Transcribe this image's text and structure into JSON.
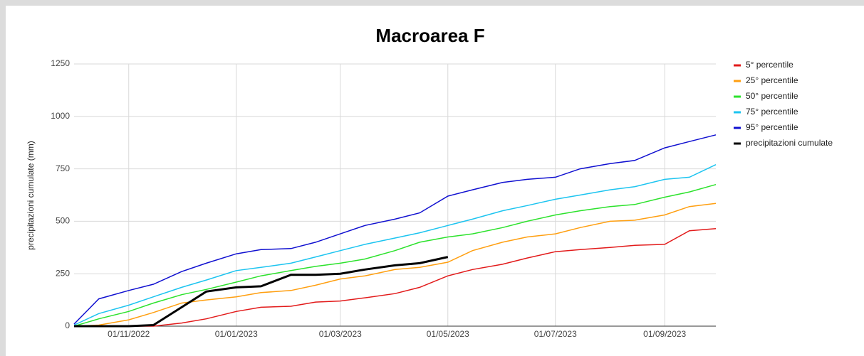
{
  "chart_data": {
    "type": "line",
    "title": "Macroarea F",
    "y_label": "precipitazioni cumulate (mm)",
    "x": [
      "01/10/2022",
      "15/10/2022",
      "01/11/2022",
      "15/11/2022",
      "01/12/2022",
      "15/12/2022",
      "01/01/2023",
      "15/01/2023",
      "01/02/2023",
      "15/02/2023",
      "01/03/2023",
      "15/03/2023",
      "01/04/2023",
      "15/04/2023",
      "01/05/2023",
      "15/05/2023",
      "01/06/2023",
      "15/06/2023",
      "01/07/2023",
      "15/07/2023",
      "01/08/2023",
      "15/08/2023",
      "01/09/2023",
      "15/09/2023",
      "30/09/2023"
    ],
    "xlim": [
      "01/10/2022",
      "30/09/2023"
    ],
    "xticks": [
      "01/11/2022",
      "01/01/2023",
      "01/03/2023",
      "01/05/2023",
      "01/07/2023",
      "01/09/2023"
    ],
    "ylim": [
      0,
      1250
    ],
    "yticks": [
      0,
      250,
      500,
      750,
      1000,
      1250
    ],
    "grid": true,
    "legend": "right",
    "series": [
      {
        "name": "5° percentile",
        "color": "#e21a1a",
        "values": [
          0,
          0,
          0,
          0,
          15,
          35,
          70,
          90,
          95,
          115,
          120,
          135,
          155,
          185,
          240,
          270,
          295,
          325,
          355,
          365,
          375,
          385,
          390,
          455,
          465
        ]
      },
      {
        "name": "25° percentile",
        "color": "#ff9f10",
        "values": [
          0,
          5,
          30,
          65,
          110,
          125,
          140,
          160,
          170,
          195,
          225,
          240,
          270,
          280,
          305,
          360,
          400,
          425,
          440,
          470,
          500,
          505,
          530,
          570,
          585
        ]
      },
      {
        "name": "50° percentile",
        "color": "#2ce22c",
        "values": [
          0,
          35,
          70,
          110,
          150,
          175,
          210,
          240,
          265,
          285,
          300,
          320,
          360,
          400,
          425,
          440,
          470,
          500,
          530,
          550,
          570,
          580,
          615,
          640,
          675
        ]
      },
      {
        "name": "75° percentile",
        "color": "#1cc4f0",
        "values": [
          5,
          60,
          100,
          140,
          185,
          220,
          265,
          280,
          300,
          330,
          360,
          390,
          420,
          445,
          480,
          510,
          550,
          575,
          605,
          625,
          650,
          665,
          700,
          710,
          770
        ]
      },
      {
        "name": "95° percentile",
        "color": "#1010d0",
        "values": [
          10,
          130,
          170,
          200,
          260,
          300,
          345,
          365,
          370,
          400,
          440,
          480,
          510,
          540,
          620,
          650,
          685,
          700,
          710,
          750,
          775,
          790,
          850,
          880,
          912
        ]
      },
      {
        "name": "precipitazioni cumulate",
        "color": "#000000",
        "values": [
          0,
          0,
          0,
          5,
          90,
          165,
          185,
          190,
          245,
          245,
          250,
          270,
          290,
          300,
          330,
          null,
          null,
          null,
          null,
          null,
          null,
          null,
          null,
          null,
          null
        ]
      }
    ]
  }
}
